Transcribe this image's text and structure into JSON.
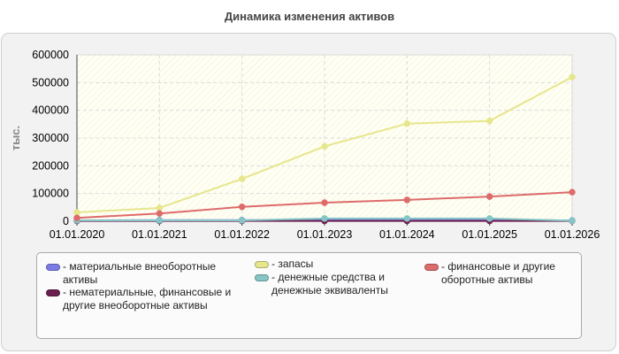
{
  "title": "Динамика изменения активов",
  "chart_data": {
    "type": "line",
    "title": "Динамика изменения активов",
    "xlabel": "",
    "ylabel": "тыс.",
    "x": [
      "01.01.2020",
      "01.01.2021",
      "01.01.2022",
      "01.01.2023",
      "01.01.2024",
      "01.01.2025",
      "01.01.2026"
    ],
    "ylim": [
      0,
      600000
    ],
    "yticks": [
      0,
      100000,
      200000,
      300000,
      400000,
      500000,
      600000
    ],
    "grid": true,
    "legend_position": "bottom",
    "series": [
      {
        "name": "- материальные внеоборотные активы",
        "color": "#7b7be6",
        "values": [
          3000,
          4000,
          4000,
          5000,
          6000,
          6000,
          3000
        ]
      },
      {
        "name": "- нематериальные, финансовые и другие внеоборотные активы",
        "color": "#6b1f4f",
        "values": [
          1000,
          1000,
          1000,
          1000,
          1000,
          1000,
          1000
        ]
      },
      {
        "name": "- запасы",
        "color": "#e6e68c",
        "values": [
          32000,
          48000,
          153000,
          270000,
          352000,
          362000,
          520000
        ]
      },
      {
        "name": "- денежные средства и денежные эквиваленты",
        "color": "#85c5c5",
        "values": [
          3000,
          3000,
          3000,
          10000,
          10000,
          10000,
          2000
        ]
      },
      {
        "name": "- финансовые и другие оборотные активы",
        "color": "#dd6b6b",
        "values": [
          12000,
          28000,
          52000,
          67000,
          77000,
          89000,
          105000
        ]
      }
    ]
  }
}
